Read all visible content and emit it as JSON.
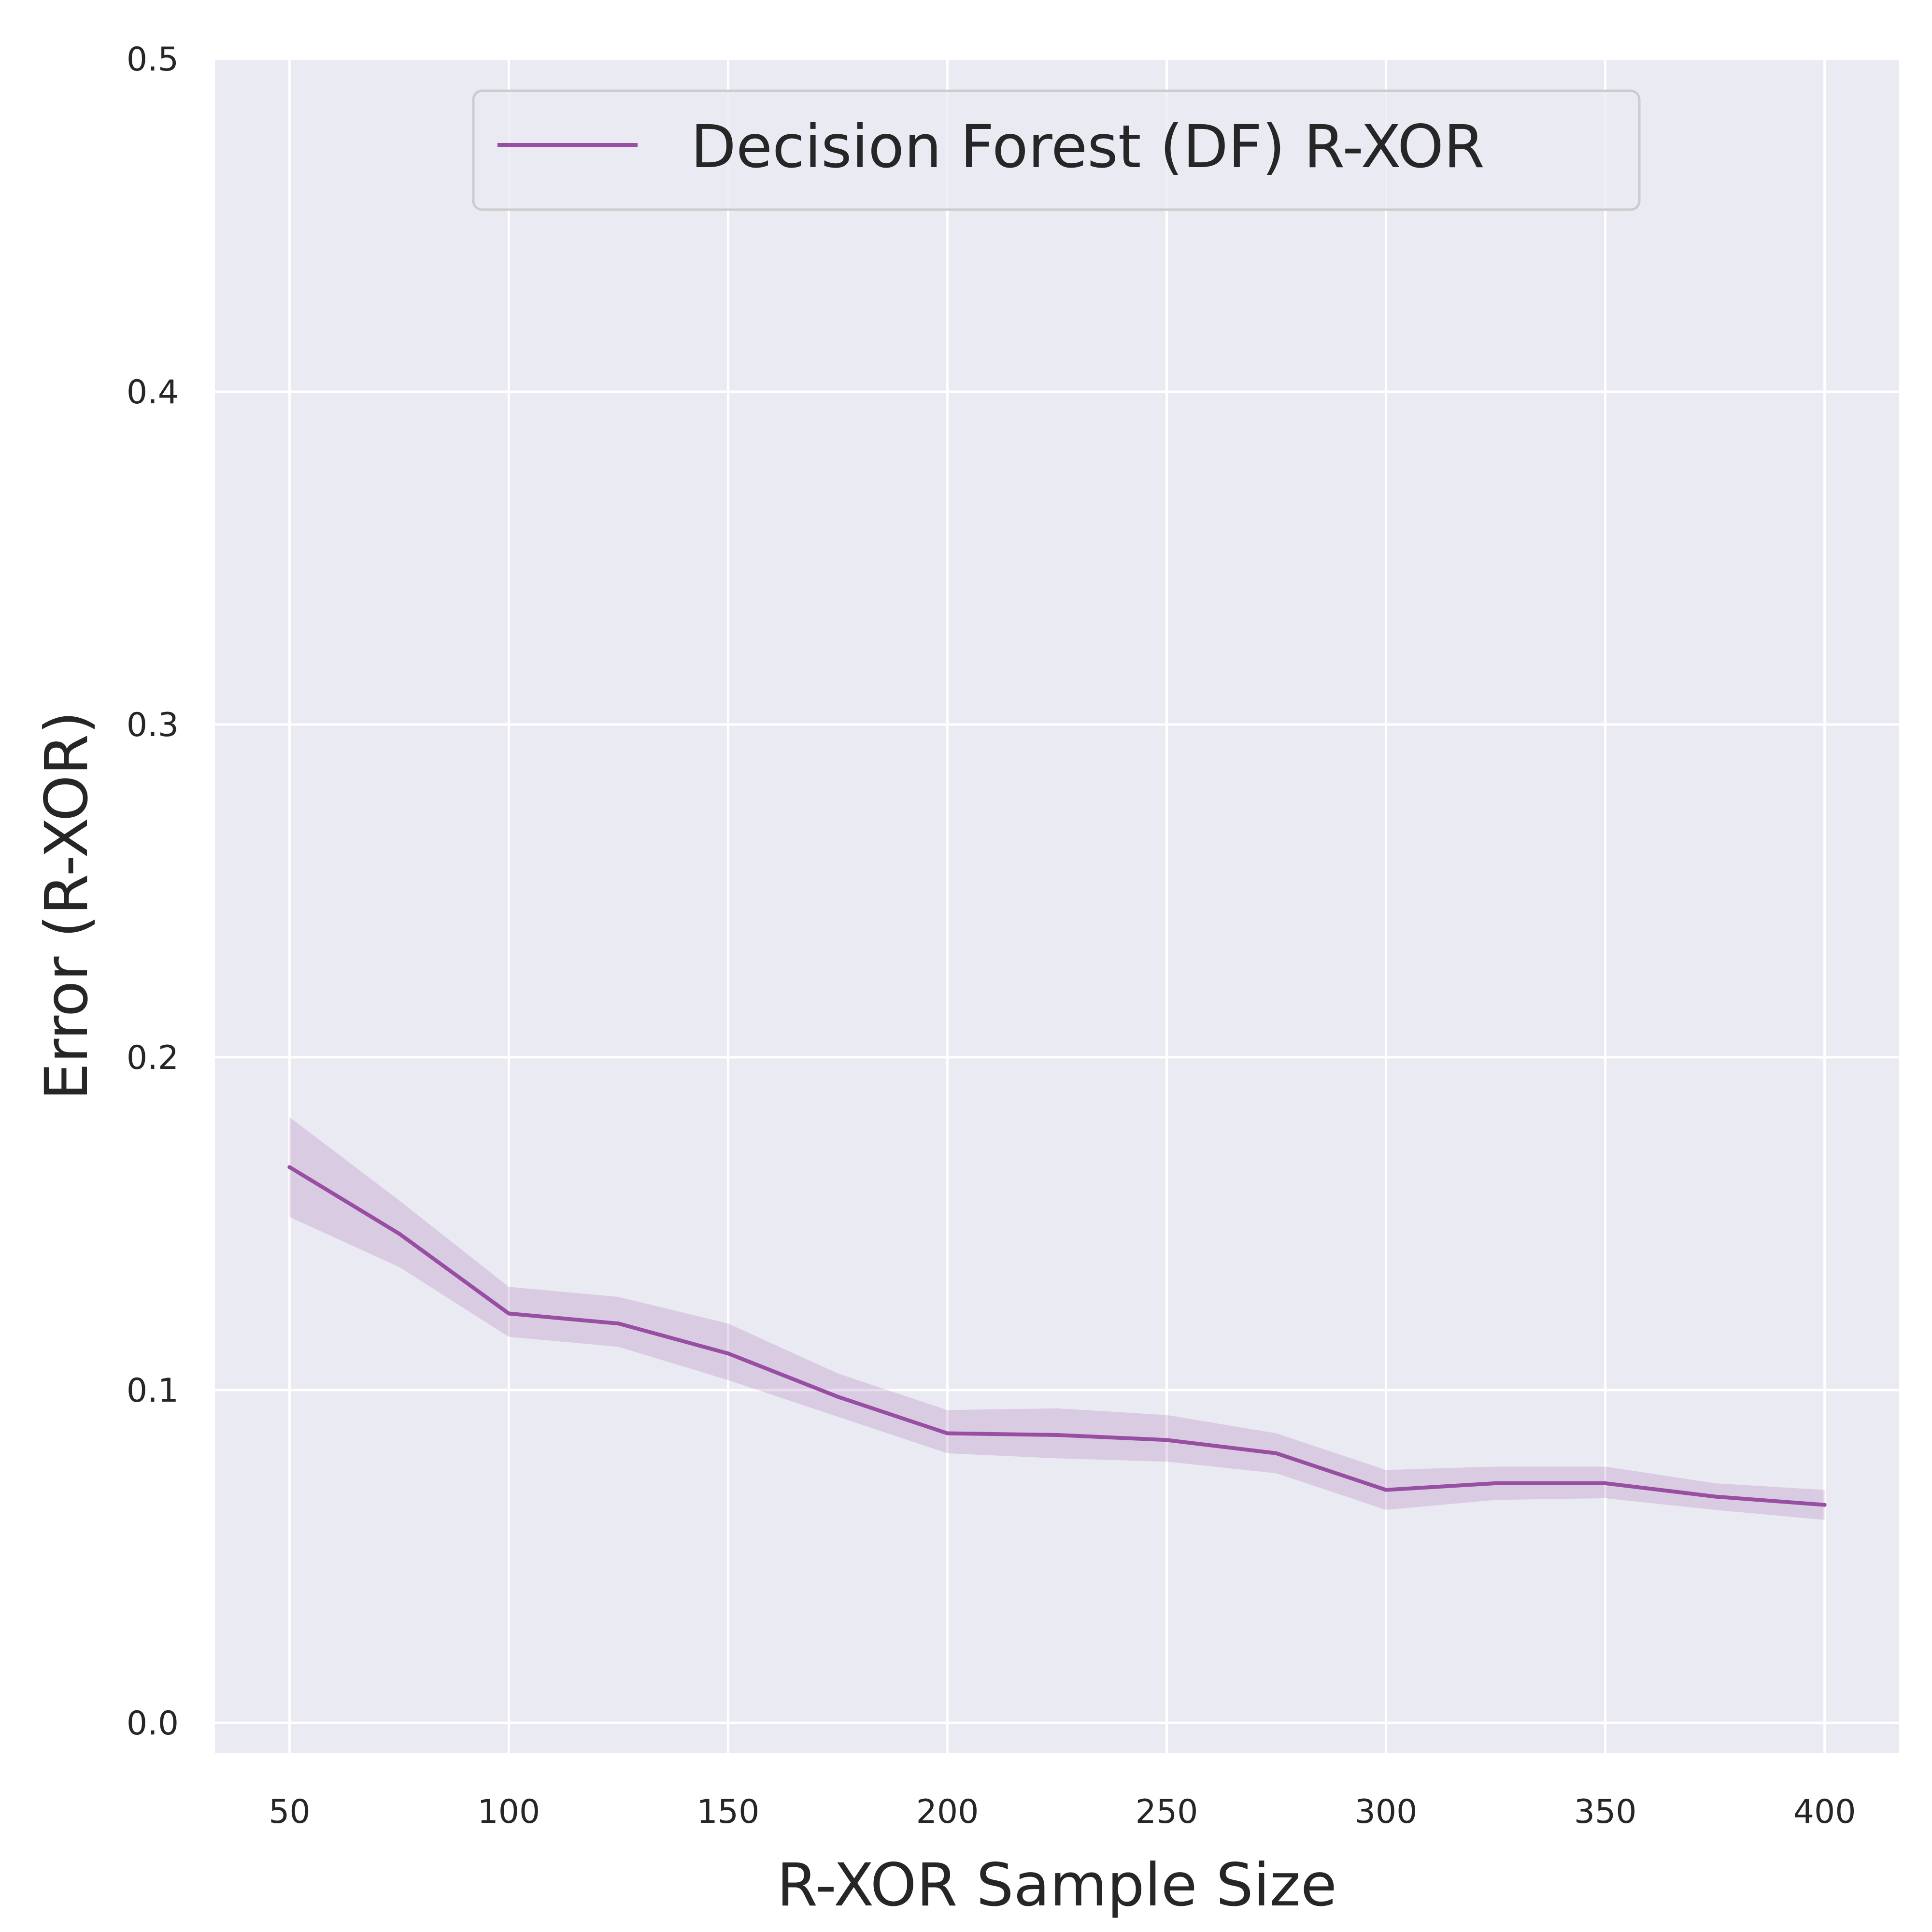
{
  "chart_data": {
    "type": "line",
    "xlabel": "R-XOR Sample Size",
    "ylabel": "Error (R-XOR)",
    "xlim": [
      33,
      417
    ],
    "ylim": [
      -0.009,
      0.5
    ],
    "x_ticks": [
      50,
      100,
      150,
      200,
      250,
      300,
      350,
      400
    ],
    "y_ticks": [
      0.0,
      0.1,
      0.2,
      0.3,
      0.4,
      0.5
    ],
    "grid": true,
    "legend_position": "upper-center",
    "colors": {
      "background": "#eaeaf2",
      "grid": "#ffffff",
      "line": "#984ea3",
      "band": "#984ea3"
    },
    "series": [
      {
        "name": "Decision Forest (DF) R-XOR",
        "x": [
          50,
          75,
          100,
          125,
          150,
          175,
          200,
          225,
          250,
          275,
          300,
          325,
          350,
          375,
          400
        ],
        "y": [
          0.167,
          0.147,
          0.123,
          0.12,
          0.111,
          0.098,
          0.087,
          0.0865,
          0.085,
          0.081,
          0.07,
          0.072,
          0.072,
          0.068,
          0.0655
        ],
        "lower": [
          0.152,
          0.137,
          0.116,
          0.113,
          0.103,
          0.092,
          0.081,
          0.0795,
          0.0785,
          0.075,
          0.064,
          0.067,
          0.0675,
          0.064,
          0.061
        ],
        "upper": [
          0.182,
          0.157,
          0.131,
          0.128,
          0.12,
          0.105,
          0.094,
          0.0945,
          0.0925,
          0.087,
          0.076,
          0.077,
          0.077,
          0.072,
          0.07
        ]
      }
    ]
  }
}
